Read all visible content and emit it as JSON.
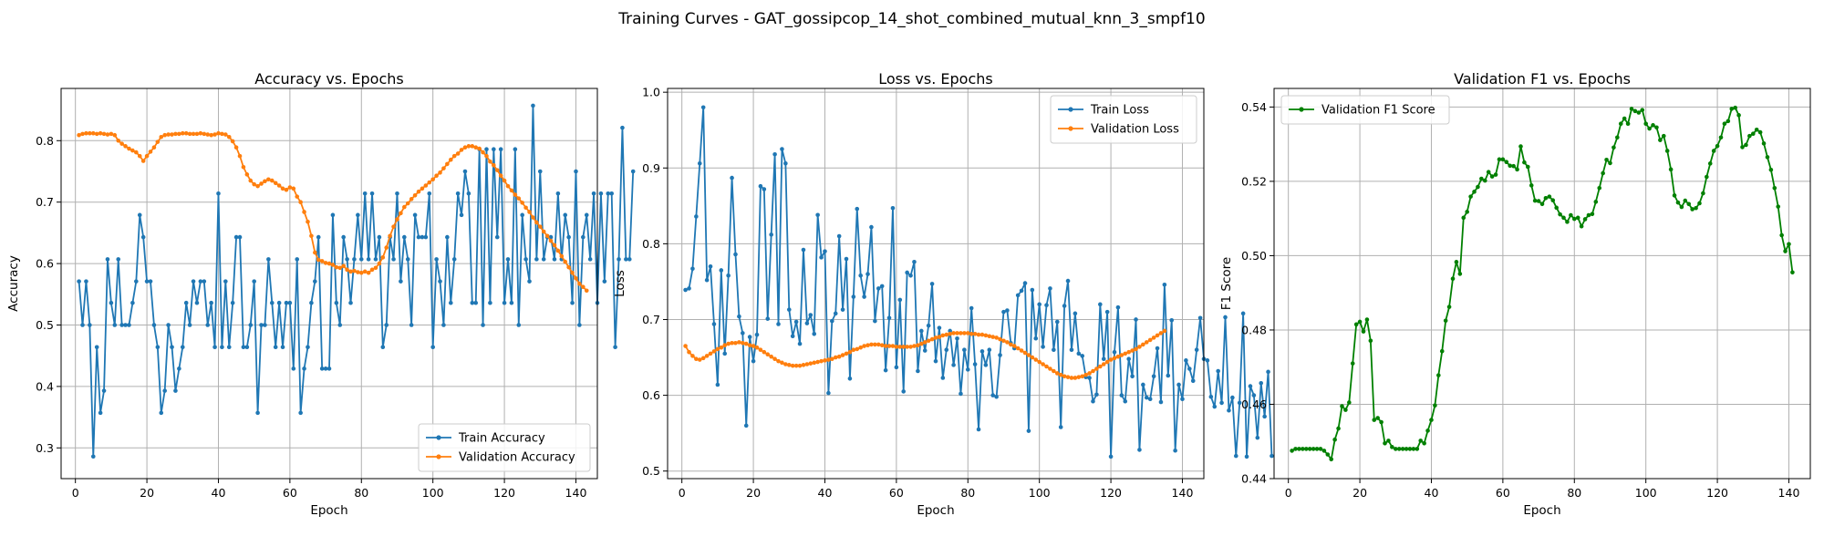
{
  "figure": {
    "suptitle": "Training Curves - GAT_gossipcop_14_shot_combined_mutual_knn_3_smpf10"
  },
  "chart_data": [
    {
      "type": "line",
      "title": "Accuracy vs. Epochs",
      "xlabel": "Epoch",
      "ylabel": "Accuracy",
      "xlim": [
        -4,
        146
      ],
      "ylim": [
        0.25,
        0.885
      ],
      "xticks": [
        0,
        20,
        40,
        60,
        80,
        100,
        120,
        140
      ],
      "yticks": [
        0.3,
        0.4,
        0.5,
        0.6,
        0.7,
        0.8
      ],
      "ytick_labels": [
        "0.3",
        "0.4",
        "0.5",
        "0.6",
        "0.7",
        "0.8"
      ],
      "grid": true,
      "legend": "lower-right",
      "series": [
        {
          "name": "Train Accuracy",
          "color": "#1f77b4",
          "x_start": 1,
          "values": [
            0.571,
            0.5,
            0.571,
            0.5,
            0.286,
            0.464,
            0.357,
            0.393,
            0.607,
            0.536,
            0.5,
            0.607,
            0.5,
            0.5,
            0.5,
            0.536,
            0.571,
            0.679,
            0.643,
            0.571,
            0.571,
            0.5,
            0.464,
            0.357,
            0.393,
            0.5,
            0.464,
            0.393,
            0.429,
            0.464,
            0.536,
            0.5,
            0.571,
            0.536,
            0.571,
            0.571,
            0.5,
            0.536,
            0.464,
            0.714,
            0.464,
            0.571,
            0.464,
            0.536,
            0.643,
            0.643,
            0.464,
            0.464,
            0.5,
            0.571,
            0.357,
            0.5,
            0.5,
            0.607,
            0.536,
            0.464,
            0.536,
            0.464,
            0.536,
            0.536,
            0.429,
            0.607,
            0.357,
            0.429,
            0.464,
            0.536,
            0.571,
            0.643,
            0.429,
            0.429,
            0.429,
            0.679,
            0.536,
            0.5,
            0.643,
            0.607,
            0.536,
            0.607,
            0.679,
            0.607,
            0.714,
            0.607,
            0.714,
            0.607,
            0.643,
            0.464,
            0.5,
            0.643,
            0.607,
            0.714,
            0.571,
            0.643,
            0.607,
            0.5,
            0.679,
            0.643,
            0.643,
            0.643,
            0.714,
            0.464,
            0.607,
            0.571,
            0.5,
            0.643,
            0.536,
            0.607,
            0.714,
            0.679,
            0.75,
            0.714,
            0.536,
            0.536,
            0.786,
            0.5,
            0.786,
            0.536,
            0.786,
            0.643,
            0.786,
            0.536,
            0.607,
            0.536,
            0.786,
            0.5,
            0.679,
            0.607,
            0.571,
            0.857,
            0.607,
            0.75,
            0.607,
            0.643,
            0.643,
            0.607,
            0.714,
            0.607,
            0.679,
            0.643,
            0.536,
            0.75,
            0.5,
            0.643,
            0.679,
            0.607,
            0.714,
            0.536,
            0.714,
            0.571,
            0.714,
            0.714,
            0.464,
            0.607,
            0.821,
            0.607,
            0.607,
            0.75
          ]
        },
        {
          "name": "Validation Accuracy",
          "color": "#ff7f0e",
          "x_start": 1,
          "values": [
            0.809,
            0.811,
            0.812,
            0.812,
            0.812,
            0.811,
            0.812,
            0.811,
            0.81,
            0.811,
            0.809,
            0.8,
            0.795,
            0.791,
            0.787,
            0.784,
            0.781,
            0.775,
            0.767,
            0.775,
            0.782,
            0.789,
            0.798,
            0.806,
            0.809,
            0.81,
            0.81,
            0.811,
            0.811,
            0.812,
            0.812,
            0.811,
            0.811,
            0.811,
            0.812,
            0.811,
            0.81,
            0.809,
            0.81,
            0.812,
            0.811,
            0.81,
            0.806,
            0.799,
            0.789,
            0.775,
            0.757,
            0.745,
            0.735,
            0.729,
            0.726,
            0.73,
            0.734,
            0.737,
            0.735,
            0.731,
            0.727,
            0.722,
            0.72,
            0.724,
            0.722,
            0.709,
            0.7,
            0.684,
            0.668,
            0.645,
            0.618,
            0.606,
            0.604,
            0.601,
            0.6,
            0.598,
            0.594,
            0.593,
            0.596,
            0.59,
            0.587,
            0.588,
            0.586,
            0.585,
            0.587,
            0.585,
            0.59,
            0.593,
            0.6,
            0.61,
            0.626,
            0.645,
            0.66,
            0.672,
            0.682,
            0.692,
            0.698,
            0.705,
            0.711,
            0.717,
            0.722,
            0.727,
            0.732,
            0.737,
            0.743,
            0.748,
            0.755,
            0.762,
            0.769,
            0.775,
            0.779,
            0.785,
            0.789,
            0.791,
            0.791,
            0.789,
            0.787,
            0.781,
            0.775,
            0.766,
            0.76,
            0.752,
            0.743,
            0.735,
            0.726,
            0.719,
            0.712,
            0.706,
            0.699,
            0.691,
            0.684,
            0.675,
            0.667,
            0.66,
            0.652,
            0.645,
            0.637,
            0.63,
            0.621,
            0.612,
            0.603,
            0.594,
            0.585,
            0.576,
            0.567,
            0.562,
            0.556
          ]
        }
      ]
    },
    {
      "type": "line",
      "title": "Loss vs. Epochs",
      "xlabel": "Epoch",
      "ylabel": "Loss",
      "xlim": [
        -4,
        146
      ],
      "ylim": [
        0.49,
        1.005
      ],
      "xticks": [
        0,
        20,
        40,
        60,
        80,
        100,
        120,
        140
      ],
      "yticks": [
        0.5,
        0.6,
        0.7,
        0.8,
        0.9,
        1.0
      ],
      "ytick_labels": [
        "0.5",
        "0.6",
        "0.7",
        "0.8",
        "0.9",
        "1.0"
      ],
      "grid": true,
      "legend": "top-right",
      "series": [
        {
          "name": "Train Loss",
          "color": "#1f77b4",
          "x_start": 1,
          "values": [
            0.739,
            0.741,
            0.767,
            0.836,
            0.906,
            0.98,
            0.752,
            0.77,
            0.694,
            0.614,
            0.765,
            0.655,
            0.758,
            0.887,
            0.786,
            0.704,
            0.682,
            0.56,
            0.677,
            0.645,
            0.68,
            0.876,
            0.872,
            0.701,
            0.812,
            0.918,
            0.694,
            0.925,
            0.906,
            0.713,
            0.678,
            0.697,
            0.668,
            0.792,
            0.695,
            0.706,
            0.681,
            0.838,
            0.782,
            0.79,
            0.603,
            0.698,
            0.708,
            0.81,
            0.713,
            0.78,
            0.622,
            0.73,
            0.846,
            0.758,
            0.73,
            0.76,
            0.822,
            0.698,
            0.741,
            0.744,
            0.633,
            0.702,
            0.847,
            0.637,
            0.726,
            0.605,
            0.762,
            0.758,
            0.776,
            0.632,
            0.685,
            0.659,
            0.692,
            0.747,
            0.645,
            0.689,
            0.623,
            0.66,
            0.685,
            0.64,
            0.675,
            0.602,
            0.66,
            0.634,
            0.715,
            0.641,
            0.555,
            0.658,
            0.64,
            0.66,
            0.6,
            0.598,
            0.653,
            0.71,
            0.712,
            0.669,
            0.662,
            0.732,
            0.738,
            0.748,
            0.553,
            0.739,
            0.675,
            0.72,
            0.664,
            0.719,
            0.741,
            0.66,
            0.697,
            0.558,
            0.718,
            0.751,
            0.66,
            0.708,
            0.655,
            0.652,
            0.624,
            0.623,
            0.592,
            0.601,
            0.72,
            0.648,
            0.71,
            0.519,
            0.657,
            0.716,
            0.6,
            0.592,
            0.648,
            0.625,
            0.7,
            0.528,
            0.614,
            0.597,
            0.595,
            0.625,
            0.662,
            0.591,
            0.746,
            0.626,
            0.699,
            0.527,
            0.614,
            0.595,
            0.646,
            0.635,
            0.619,
            0.66,
            0.702,
            0.648,
            0.646,
            0.598,
            0.585,
            0.632,
            0.59,
            0.703,
            0.58,
            0.597,
            0.52,
            0.59,
            0.708,
            0.519,
            0.612,
            0.6,
            0.544,
            0.616,
            0.572,
            0.631,
            0.52
          ]
        },
        {
          "name": "Validation Loss",
          "color": "#ff7f0e",
          "x_start": 1,
          "values": [
            0.665,
            0.657,
            0.652,
            0.648,
            0.647,
            0.649,
            0.652,
            0.655,
            0.658,
            0.661,
            0.663,
            0.666,
            0.668,
            0.669,
            0.669,
            0.67,
            0.669,
            0.668,
            0.666,
            0.665,
            0.663,
            0.66,
            0.657,
            0.654,
            0.651,
            0.648,
            0.645,
            0.643,
            0.641,
            0.64,
            0.639,
            0.639,
            0.639,
            0.64,
            0.641,
            0.642,
            0.643,
            0.644,
            0.645,
            0.646,
            0.647,
            0.648,
            0.65,
            0.651,
            0.653,
            0.655,
            0.657,
            0.66,
            0.661,
            0.663,
            0.665,
            0.666,
            0.667,
            0.667,
            0.667,
            0.666,
            0.665,
            0.665,
            0.665,
            0.664,
            0.664,
            0.664,
            0.664,
            0.664,
            0.665,
            0.666,
            0.668,
            0.67,
            0.672,
            0.674,
            0.676,
            0.677,
            0.679,
            0.68,
            0.681,
            0.682,
            0.682,
            0.682,
            0.682,
            0.682,
            0.681,
            0.681,
            0.68,
            0.68,
            0.679,
            0.678,
            0.677,
            0.676,
            0.674,
            0.672,
            0.67,
            0.667,
            0.665,
            0.662,
            0.659,
            0.656,
            0.653,
            0.65,
            0.647,
            0.644,
            0.641,
            0.638,
            0.635,
            0.632,
            0.629,
            0.627,
            0.625,
            0.624,
            0.623,
            0.623,
            0.624,
            0.625,
            0.627,
            0.629,
            0.632,
            0.635,
            0.638,
            0.641,
            0.644,
            0.647,
            0.649,
            0.651,
            0.653,
            0.655,
            0.657,
            0.659,
            0.661,
            0.664,
            0.667,
            0.67,
            0.673,
            0.676,
            0.679,
            0.682,
            0.685
          ]
        }
      ]
    },
    {
      "type": "line",
      "title": "Validation F1 vs. Epochs",
      "xlabel": "Epoch",
      "ylabel": "F1 Score",
      "xlim": [
        -4,
        146
      ],
      "ylim": [
        0.44,
        0.545
      ],
      "xticks": [
        0,
        20,
        40,
        60,
        80,
        100,
        120,
        140
      ],
      "yticks": [
        0.44,
        0.46,
        0.48,
        0.5,
        0.52,
        0.54
      ],
      "ytick_labels": [
        "0.44",
        "0.46",
        "0.48",
        "0.50",
        "0.52",
        "0.54"
      ],
      "grid": true,
      "legend": "top-left",
      "series": [
        {
          "name": "Validation F1 Score",
          "color": "#008000",
          "x_start": 1,
          "values": [
            0.4475,
            0.448,
            0.448,
            0.448,
            0.448,
            0.448,
            0.448,
            0.448,
            0.448,
            0.4475,
            0.4465,
            0.4452,
            0.4505,
            0.4535,
            0.4595,
            0.4585,
            0.4605,
            0.471,
            0.4815,
            0.4822,
            0.4796,
            0.4828,
            0.4771,
            0.4558,
            0.4563,
            0.4552,
            0.4495,
            0.4502,
            0.4485,
            0.448,
            0.448,
            0.448,
            0.448,
            0.448,
            0.448,
            0.448,
            0.4502,
            0.4495,
            0.4529,
            0.4558,
            0.4597,
            0.4678,
            0.4743,
            0.4825,
            0.4862,
            0.4938,
            0.4983,
            0.4951,
            0.5102,
            0.5118,
            0.5159,
            0.5172,
            0.5185,
            0.5207,
            0.5202,
            0.5225,
            0.5213,
            0.5218,
            0.5259,
            0.5259,
            0.5252,
            0.5242,
            0.5241,
            0.5232,
            0.5294,
            0.5251,
            0.5239,
            0.5189,
            0.5148,
            0.5147,
            0.5139,
            0.5155,
            0.5159,
            0.5149,
            0.5129,
            0.5111,
            0.5102,
            0.5091,
            0.5109,
            0.5099,
            0.5102,
            0.5079,
            0.5098,
            0.5109,
            0.5112,
            0.5145,
            0.5182,
            0.5222,
            0.5258,
            0.5249,
            0.5291,
            0.5318,
            0.5355,
            0.5369,
            0.5355,
            0.5395,
            0.5389,
            0.5385,
            0.5392,
            0.5355,
            0.5342,
            0.5351,
            0.5345,
            0.5311,
            0.5322,
            0.5282,
            0.5232,
            0.5162,
            0.5143,
            0.5131,
            0.5148,
            0.5139,
            0.5125,
            0.5128,
            0.5141,
            0.5168,
            0.5212,
            0.5248,
            0.5282,
            0.5295,
            0.5318,
            0.5355,
            0.5362,
            0.5395,
            0.5398,
            0.5378,
            0.5292,
            0.5298,
            0.5322,
            0.5328,
            0.5339,
            0.5332,
            0.5302,
            0.5265,
            0.5231,
            0.5182,
            0.5132,
            0.5055,
            0.5012,
            0.5031,
            0.4955
          ]
        }
      ]
    }
  ]
}
